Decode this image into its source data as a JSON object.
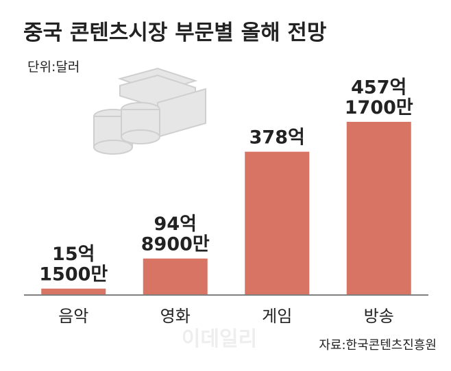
{
  "chart_data": {
    "type": "bar",
    "title": "중국 콘텐츠시장 부문별 올해 전망",
    "unit": "단위:달러",
    "categories": [
      "음악",
      "영화",
      "게임",
      "방송"
    ],
    "values": [
      15.15,
      94.89,
      378,
      457.17
    ],
    "value_labels": [
      "15억\n1500만",
      "94억\n8900만",
      "378억",
      "457억\n1700만"
    ],
    "color": "#d87463",
    "source": "자료:한국콘텐츠진흥원",
    "watermark": "이데일리"
  }
}
